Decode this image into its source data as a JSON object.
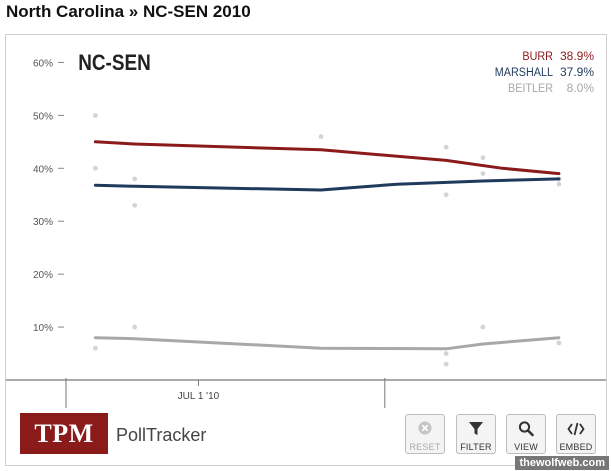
{
  "page": {
    "title": "North Carolina » NC-SEN 2010"
  },
  "brand": {
    "logo_text": "TPM",
    "product": "PollTracker",
    "watermark": "thewolfweb.com"
  },
  "toolbar": {
    "reset_label": "RESET",
    "filter_label": "FILTER",
    "view_label": "VIEW",
    "embed_label": "EMBED",
    "reset_icon": "close-circle-icon",
    "filter_icon": "funnel-icon",
    "view_icon": "magnifier-icon",
    "embed_icon": "code-icon"
  },
  "colors": {
    "burr": "#8b1a1a",
    "marshall": "#1f3a5c",
    "beitler": "#a8a8a8",
    "tpm_red": "#8b1a1a"
  },
  "chart_data": {
    "type": "line",
    "title": "NC-SEN",
    "ylim": [
      0,
      65
    ],
    "yticks": [
      10,
      20,
      30,
      40,
      50,
      60
    ],
    "ytick_labels": [
      "10%",
      "20%",
      "30%",
      "40%",
      "50%",
      "60%"
    ],
    "xtick_labels": [
      "JUL 1 '10"
    ],
    "x_domain": [
      "2010-05-08",
      "2010-12-04"
    ],
    "xticks": [
      "2010-07-01"
    ],
    "x_gridlines": [
      "2010-05-08",
      "2010-09-15"
    ],
    "grid": false,
    "legend_position": "top-right",
    "series": [
      {
        "name": "BURR",
        "value_label": "38.9%",
        "color": "#8b1a1a",
        "trend": [
          [
            "2010-05-20",
            45
          ],
          [
            "2010-06-05",
            44.6
          ],
          [
            "2010-08-20",
            43.5
          ],
          [
            "2010-10-10",
            41.5
          ],
          [
            "2010-11-02",
            40
          ],
          [
            "2010-11-25",
            39
          ]
        ],
        "polls": [
          [
            "2010-05-20",
            50
          ],
          [
            "2010-05-20",
            40
          ],
          [
            "2010-06-05",
            38
          ],
          [
            "2010-08-20",
            46
          ],
          [
            "2010-10-10",
            44
          ],
          [
            "2010-10-25",
            42
          ],
          [
            "2010-11-25",
            38
          ]
        ]
      },
      {
        "name": "MARSHALL",
        "value_label": "37.9%",
        "color": "#1f3a5c",
        "trend": [
          [
            "2010-05-20",
            36.8
          ],
          [
            "2010-06-05",
            36.6
          ],
          [
            "2010-08-20",
            35.9
          ],
          [
            "2010-09-20",
            37
          ],
          [
            "2010-10-25",
            37.6
          ],
          [
            "2010-11-25",
            38
          ]
        ],
        "polls": [
          [
            "2010-06-05",
            33
          ],
          [
            "2010-10-10",
            35
          ],
          [
            "2010-10-25",
            39
          ],
          [
            "2010-11-25",
            37
          ]
        ]
      },
      {
        "name": "BEITLER",
        "value_label": "8.0%",
        "color": "#a8a8a8",
        "trend": [
          [
            "2010-05-20",
            8
          ],
          [
            "2010-06-05",
            7.8
          ],
          [
            "2010-08-20",
            6
          ],
          [
            "2010-10-10",
            5.9
          ],
          [
            "2010-10-25",
            6.8
          ],
          [
            "2010-11-25",
            8
          ]
        ],
        "polls": [
          [
            "2010-05-20",
            6
          ],
          [
            "2010-06-05",
            10
          ],
          [
            "2010-10-10",
            5
          ],
          [
            "2010-10-10",
            3
          ],
          [
            "2010-10-25",
            10
          ],
          [
            "2010-11-25",
            7
          ]
        ]
      }
    ]
  }
}
